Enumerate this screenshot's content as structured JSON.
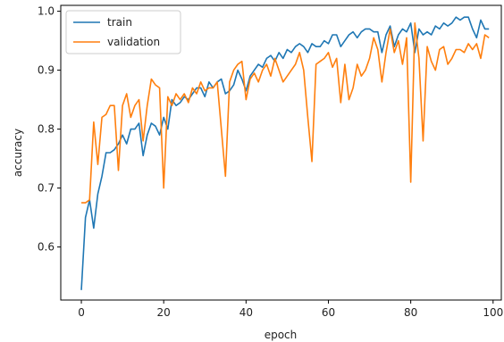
{
  "chart_data": {
    "type": "line",
    "title": "",
    "xlabel": "epoch",
    "ylabel": "accuracy",
    "xlim": [
      -5,
      102
    ],
    "ylim": [
      0.51,
      1.01
    ],
    "xticks": [
      0,
      20,
      40,
      60,
      80,
      100
    ],
    "yticks": [
      0.6,
      0.7,
      0.8,
      0.9,
      1.0
    ],
    "grid": false,
    "legend": {
      "placement": "top-left"
    },
    "series": [
      {
        "name": "train",
        "color": "#1f77b4",
        "x": [
          0,
          1,
          2,
          3,
          4,
          5,
          6,
          7,
          8,
          9,
          10,
          11,
          12,
          13,
          14,
          15,
          16,
          17,
          18,
          19,
          20,
          21,
          22,
          23,
          24,
          25,
          26,
          27,
          28,
          29,
          30,
          31,
          32,
          33,
          34,
          35,
          36,
          37,
          38,
          39,
          40,
          41,
          42,
          43,
          44,
          45,
          46,
          47,
          48,
          49,
          50,
          51,
          52,
          53,
          54,
          55,
          56,
          57,
          58,
          59,
          60,
          61,
          62,
          63,
          64,
          65,
          66,
          67,
          68,
          69,
          70,
          71,
          72,
          73,
          74,
          75,
          76,
          77,
          78,
          79,
          80,
          81,
          82,
          83,
          84,
          85,
          86,
          87,
          88,
          89,
          90,
          91,
          92,
          93,
          94,
          95,
          96,
          97,
          98,
          99
        ],
        "values": [
          0.527,
          0.65,
          0.68,
          0.632,
          0.69,
          0.72,
          0.76,
          0.76,
          0.765,
          0.775,
          0.79,
          0.775,
          0.8,
          0.8,
          0.81,
          0.755,
          0.79,
          0.81,
          0.805,
          0.79,
          0.82,
          0.8,
          0.85,
          0.84,
          0.845,
          0.855,
          0.85,
          0.86,
          0.87,
          0.87,
          0.855,
          0.88,
          0.87,
          0.88,
          0.885,
          0.86,
          0.865,
          0.875,
          0.9,
          0.885,
          0.865,
          0.89,
          0.9,
          0.91,
          0.905,
          0.92,
          0.925,
          0.915,
          0.93,
          0.92,
          0.935,
          0.93,
          0.94,
          0.945,
          0.94,
          0.93,
          0.945,
          0.94,
          0.94,
          0.95,
          0.945,
          0.96,
          0.96,
          0.94,
          0.95,
          0.96,
          0.965,
          0.955,
          0.965,
          0.97,
          0.97,
          0.965,
          0.965,
          0.93,
          0.96,
          0.975,
          0.94,
          0.96,
          0.97,
          0.965,
          0.98,
          0.93,
          0.97,
          0.96,
          0.965,
          0.96,
          0.975,
          0.97,
          0.98,
          0.975,
          0.98,
          0.99,
          0.985,
          0.99,
          0.99,
          0.97,
          0.955,
          0.985,
          0.97,
          0.97
        ]
      },
      {
        "name": "validation",
        "color": "#ff7f0e",
        "x": [
          0,
          1,
          2,
          3,
          4,
          5,
          6,
          7,
          8,
          9,
          10,
          11,
          12,
          13,
          14,
          15,
          16,
          17,
          18,
          19,
          20,
          21,
          22,
          23,
          24,
          25,
          26,
          27,
          28,
          29,
          30,
          31,
          32,
          33,
          34,
          35,
          36,
          37,
          38,
          39,
          40,
          41,
          42,
          43,
          44,
          45,
          46,
          47,
          48,
          49,
          50,
          51,
          52,
          53,
          54,
          55,
          56,
          57,
          58,
          59,
          60,
          61,
          62,
          63,
          64,
          65,
          66,
          67,
          68,
          69,
          70,
          71,
          72,
          73,
          74,
          75,
          76,
          77,
          78,
          79,
          80,
          81,
          82,
          83,
          84,
          85,
          86,
          87,
          88,
          89,
          90,
          91,
          92,
          93,
          94,
          95,
          96,
          97,
          98,
          99
        ],
        "values": [
          0.675,
          0.675,
          0.68,
          0.812,
          0.74,
          0.82,
          0.825,
          0.84,
          0.84,
          0.73,
          0.84,
          0.86,
          0.82,
          0.84,
          0.85,
          0.78,
          0.84,
          0.885,
          0.875,
          0.87,
          0.7,
          0.855,
          0.84,
          0.86,
          0.85,
          0.86,
          0.845,
          0.87,
          0.86,
          0.88,
          0.865,
          0.87,
          0.87,
          0.88,
          0.8,
          0.72,
          0.88,
          0.9,
          0.91,
          0.915,
          0.85,
          0.885,
          0.895,
          0.88,
          0.9,
          0.91,
          0.89,
          0.92,
          0.9,
          0.88,
          0.89,
          0.9,
          0.91,
          0.93,
          0.9,
          0.82,
          0.745,
          0.91,
          0.915,
          0.92,
          0.93,
          0.905,
          0.92,
          0.845,
          0.91,
          0.85,
          0.87,
          0.91,
          0.89,
          0.9,
          0.92,
          0.955,
          0.935,
          0.88,
          0.93,
          0.97,
          0.93,
          0.95,
          0.91,
          0.955,
          0.71,
          0.98,
          0.92,
          0.78,
          0.94,
          0.915,
          0.9,
          0.935,
          0.94,
          0.91,
          0.92,
          0.935,
          0.935,
          0.93,
          0.945,
          0.935,
          0.945,
          0.92,
          0.96,
          0.955
        ]
      }
    ]
  }
}
